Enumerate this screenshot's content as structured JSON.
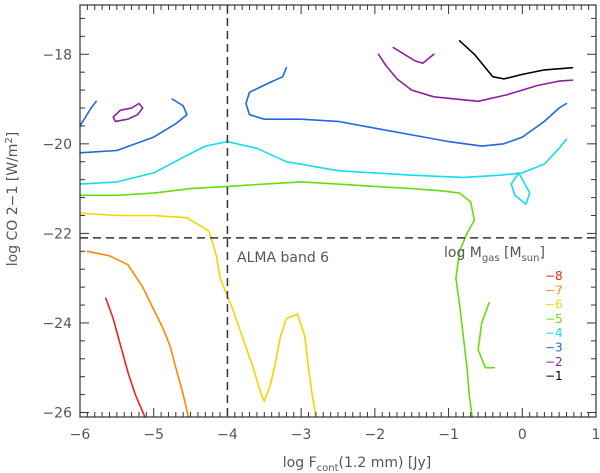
{
  "chart_data": {
    "type": "line",
    "title": "",
    "xlabel_parts": [
      "log F",
      "cont",
      "(1.2 mm) [Jy]"
    ],
    "ylabel_parts": [
      "log CO 2−1  [W/m",
      "2",
      "]"
    ],
    "xlim": [
      -6,
      1
    ],
    "ylim": [
      -26.1,
      -16.9
    ],
    "x_scale": "linear",
    "y_scale": "linear",
    "grid": false,
    "legend_placement": "lower-right",
    "x_ticks": [
      -6,
      -5,
      -4,
      -3,
      -2,
      -1,
      0,
      1
    ],
    "x_tick_labels": [
      "−6",
      "−5",
      "−4",
      "−3",
      "−2",
      "−1",
      "0",
      "1"
    ],
    "y_ticks": [
      -18,
      -20,
      -22,
      -24,
      -26
    ],
    "y_tick_labels": [
      "−18",
      "−20",
      "−22",
      "−24",
      "−26"
    ],
    "reference_lines": {
      "vertical_x": -4,
      "horizontal_y": -22.1,
      "color": "#333333",
      "style": "dashed"
    },
    "annotation": "ALMA band 6",
    "legend_title_parts": [
      "log M",
      "gas",
      " [M",
      "sun",
      "]"
    ],
    "series": [
      {
        "name": "−8",
        "color": "#ee2222",
        "segments": [
          [
            [
              -5.65,
              -23.45
            ],
            [
              -5.55,
              -23.9
            ],
            [
              -5.45,
              -24.5
            ],
            [
              -5.35,
              -25.1
            ],
            [
              -5.25,
              -25.6
            ],
            [
              -5.12,
              -26.1
            ]
          ]
        ]
      },
      {
        "name": "−7",
        "color": "#ff8800",
        "segments": [
          [
            [
              -5.9,
              -22.4
            ],
            [
              -5.6,
              -22.5
            ],
            [
              -5.35,
              -22.7
            ],
            [
              -5.15,
              -23.2
            ],
            [
              -5.0,
              -23.7
            ],
            [
              -4.88,
              -24.1
            ],
            [
              -4.78,
              -24.5
            ],
            [
              -4.7,
              -25.0
            ],
            [
              -4.6,
              -25.6
            ],
            [
              -4.53,
              -26.1
            ]
          ]
        ]
      },
      {
        "name": "−6",
        "color": "#f5d400",
        "segments": [
          [
            [
              -6.0,
              -21.55
            ],
            [
              -5.5,
              -21.6
            ],
            [
              -5.0,
              -21.6
            ],
            [
              -4.55,
              -21.65
            ],
            [
              -4.25,
              -21.95
            ],
            [
              -4.15,
              -22.5
            ],
            [
              -4.1,
              -23.0
            ],
            [
              -3.95,
              -23.6
            ],
            [
              -3.8,
              -24.3
            ],
            [
              -3.65,
              -25.0
            ],
            [
              -3.55,
              -25.55
            ],
            [
              -3.5,
              -25.75
            ],
            [
              -3.42,
              -25.4
            ],
            [
              -3.35,
              -24.9
            ],
            [
              -3.28,
              -24.3
            ],
            [
              -3.2,
              -23.9
            ],
            [
              -3.05,
              -23.8
            ],
            [
              -2.95,
              -24.3
            ],
            [
              -2.9,
              -25.0
            ],
            [
              -2.85,
              -25.6
            ],
            [
              -2.8,
              -26.1
            ]
          ]
        ]
      },
      {
        "name": "−5",
        "color": "#66dd11",
        "segments": [
          [
            [
              -6.0,
              -21.15
            ],
            [
              -5.5,
              -21.15
            ],
            [
              -5.0,
              -21.1
            ],
            [
              -4.5,
              -21.0
            ],
            [
              -4.0,
              -20.95
            ],
            [
              -3.5,
              -20.9
            ],
            [
              -3.0,
              -20.85
            ],
            [
              -2.5,
              -20.9
            ],
            [
              -2.0,
              -20.95
            ],
            [
              -1.5,
              -21.0
            ],
            [
              -1.1,
              -21.05
            ],
            [
              -0.85,
              -21.1
            ],
            [
              -0.7,
              -21.3
            ],
            [
              -0.65,
              -21.7
            ],
            [
              -0.75,
              -22.0
            ],
            [
              -0.85,
              -22.4
            ],
            [
              -0.9,
              -23.0
            ],
            [
              -0.85,
              -23.6
            ],
            [
              -0.8,
              -24.3
            ],
            [
              -0.75,
              -25.0
            ],
            [
              -0.72,
              -25.6
            ],
            [
              -0.68,
              -26.1
            ]
          ],
          [
            [
              -0.45,
              -23.55
            ],
            [
              -0.55,
              -24.0
            ],
            [
              -0.6,
              -24.6
            ],
            [
              -0.5,
              -25.0
            ],
            [
              -0.38,
              -25.0
            ]
          ]
        ]
      },
      {
        "name": "−4",
        "color": "#11ddee",
        "segments": [
          [
            [
              -6.0,
              -20.9
            ],
            [
              -5.5,
              -20.85
            ],
            [
              -5.0,
              -20.65
            ],
            [
              -4.6,
              -20.3
            ],
            [
              -4.3,
              -20.05
            ],
            [
              -4.0,
              -19.95
            ],
            [
              -3.6,
              -20.1
            ],
            [
              -3.2,
              -20.4
            ],
            [
              -2.5,
              -20.6
            ],
            [
              -1.5,
              -20.7
            ],
            [
              -0.8,
              -20.75
            ],
            [
              -0.3,
              -20.7
            ],
            [
              0.0,
              -20.65
            ],
            [
              0.3,
              -20.45
            ],
            [
              0.5,
              -20.1
            ],
            [
              0.6,
              -19.9
            ]
          ],
          [
            [
              -0.05,
              -20.65
            ],
            [
              -0.15,
              -20.9
            ],
            [
              -0.1,
              -21.15
            ],
            [
              0.05,
              -21.35
            ],
            [
              0.1,
              -21.1
            ],
            [
              0.02,
              -20.85
            ],
            [
              -0.05,
              -20.65
            ]
          ]
        ]
      },
      {
        "name": "−3",
        "color": "#2266dd",
        "segments": [
          [
            [
              -6.0,
              -19.6
            ],
            [
              -5.85,
              -19.2
            ],
            [
              -5.78,
              -19.05
            ]
          ],
          [
            [
              -6.0,
              -20.2
            ],
            [
              -5.5,
              -20.15
            ],
            [
              -5.0,
              -19.85
            ],
            [
              -4.7,
              -19.55
            ],
            [
              -4.55,
              -19.35
            ],
            [
              -4.6,
              -19.15
            ],
            [
              -4.75,
              -19.0
            ]
          ],
          [
            [
              -3.2,
              -18.3
            ],
            [
              -3.25,
              -18.5
            ],
            [
              -3.45,
              -18.65
            ],
            [
              -3.7,
              -18.85
            ],
            [
              -3.75,
              -19.1
            ],
            [
              -3.7,
              -19.35
            ],
            [
              -3.5,
              -19.45
            ],
            [
              -3.0,
              -19.45
            ],
            [
              -2.5,
              -19.5
            ],
            [
              -2.0,
              -19.65
            ],
            [
              -1.5,
              -19.8
            ],
            [
              -1.0,
              -19.95
            ],
            [
              -0.55,
              -20.05
            ],
            [
              -0.25,
              -20.0
            ],
            [
              0.0,
              -19.85
            ],
            [
              0.3,
              -19.5
            ],
            [
              0.5,
              -19.2
            ],
            [
              0.6,
              -19.1
            ]
          ]
        ]
      },
      {
        "name": "−2",
        "color": "#882299",
        "segments": [
          [
            [
              -5.3,
              -19.2
            ],
            [
              -5.45,
              -19.25
            ],
            [
              -5.55,
              -19.4
            ],
            [
              -5.52,
              -19.5
            ],
            [
              -5.35,
              -19.45
            ],
            [
              -5.22,
              -19.35
            ],
            [
              -5.15,
              -19.2
            ],
            [
              -5.2,
              -19.1
            ],
            [
              -5.3,
              -19.2
            ]
          ],
          [
            [
              -1.95,
              -18.0
            ],
            [
              -1.85,
              -18.25
            ],
            [
              -1.7,
              -18.55
            ],
            [
              -1.5,
              -18.8
            ],
            [
              -1.2,
              -18.95
            ],
            [
              -0.6,
              -19.05
            ],
            [
              -0.2,
              -18.9
            ],
            [
              0.2,
              -18.7
            ],
            [
              0.5,
              -18.6
            ],
            [
              0.68,
              -18.58
            ]
          ],
          [
            [
              -1.75,
              -17.85
            ],
            [
              -1.6,
              -18.0
            ],
            [
              -1.45,
              -18.15
            ],
            [
              -1.35,
              -18.2
            ],
            [
              -1.2,
              -18.0
            ]
          ]
        ]
      },
      {
        "name": "−1",
        "color": "#000000",
        "segments": [
          [
            [
              -0.85,
              -17.7
            ],
            [
              -0.65,
              -18.0
            ],
            [
              -0.5,
              -18.3
            ],
            [
              -0.4,
              -18.5
            ],
            [
              -0.25,
              -18.55
            ],
            [
              0.0,
              -18.45
            ],
            [
              0.3,
              -18.35
            ],
            [
              0.68,
              -18.3
            ]
          ]
        ]
      }
    ]
  }
}
